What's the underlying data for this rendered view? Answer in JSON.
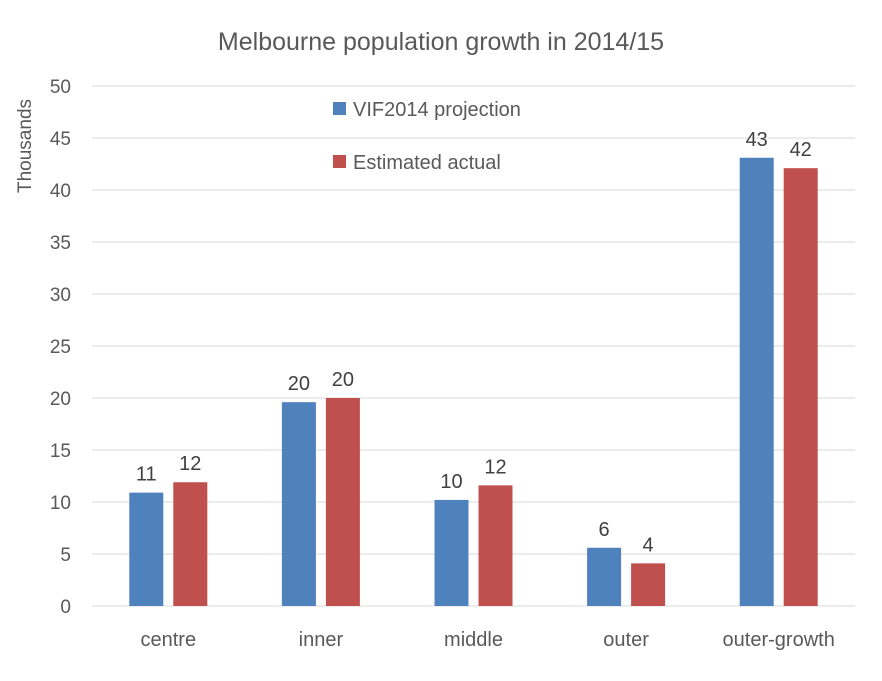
{
  "chart_data": {
    "type": "bar",
    "title": "Melbourne population growth in 2014/15",
    "xlabel": "",
    "ylabel": "Thousands",
    "ylim": [
      0,
      50
    ],
    "yticks": [
      0,
      5,
      10,
      15,
      20,
      25,
      30,
      35,
      40,
      45,
      50
    ],
    "grid": true,
    "legend_position": "top-center",
    "categories": [
      "centre",
      "inner",
      "middle",
      "outer",
      "outer-growth"
    ],
    "series": [
      {
        "name": "VIF2014 projection",
        "color": "#4f81bd",
        "values": [
          10.9,
          19.6,
          10.2,
          5.6,
          43.1
        ],
        "labels": [
          "11",
          "20",
          "10",
          "6",
          "43"
        ]
      },
      {
        "name": "Estimated actual",
        "color": "#c0504d",
        "values": [
          11.9,
          20.0,
          11.6,
          4.1,
          42.1
        ],
        "labels": [
          "12",
          "20",
          "12",
          "4",
          "42"
        ]
      }
    ]
  }
}
